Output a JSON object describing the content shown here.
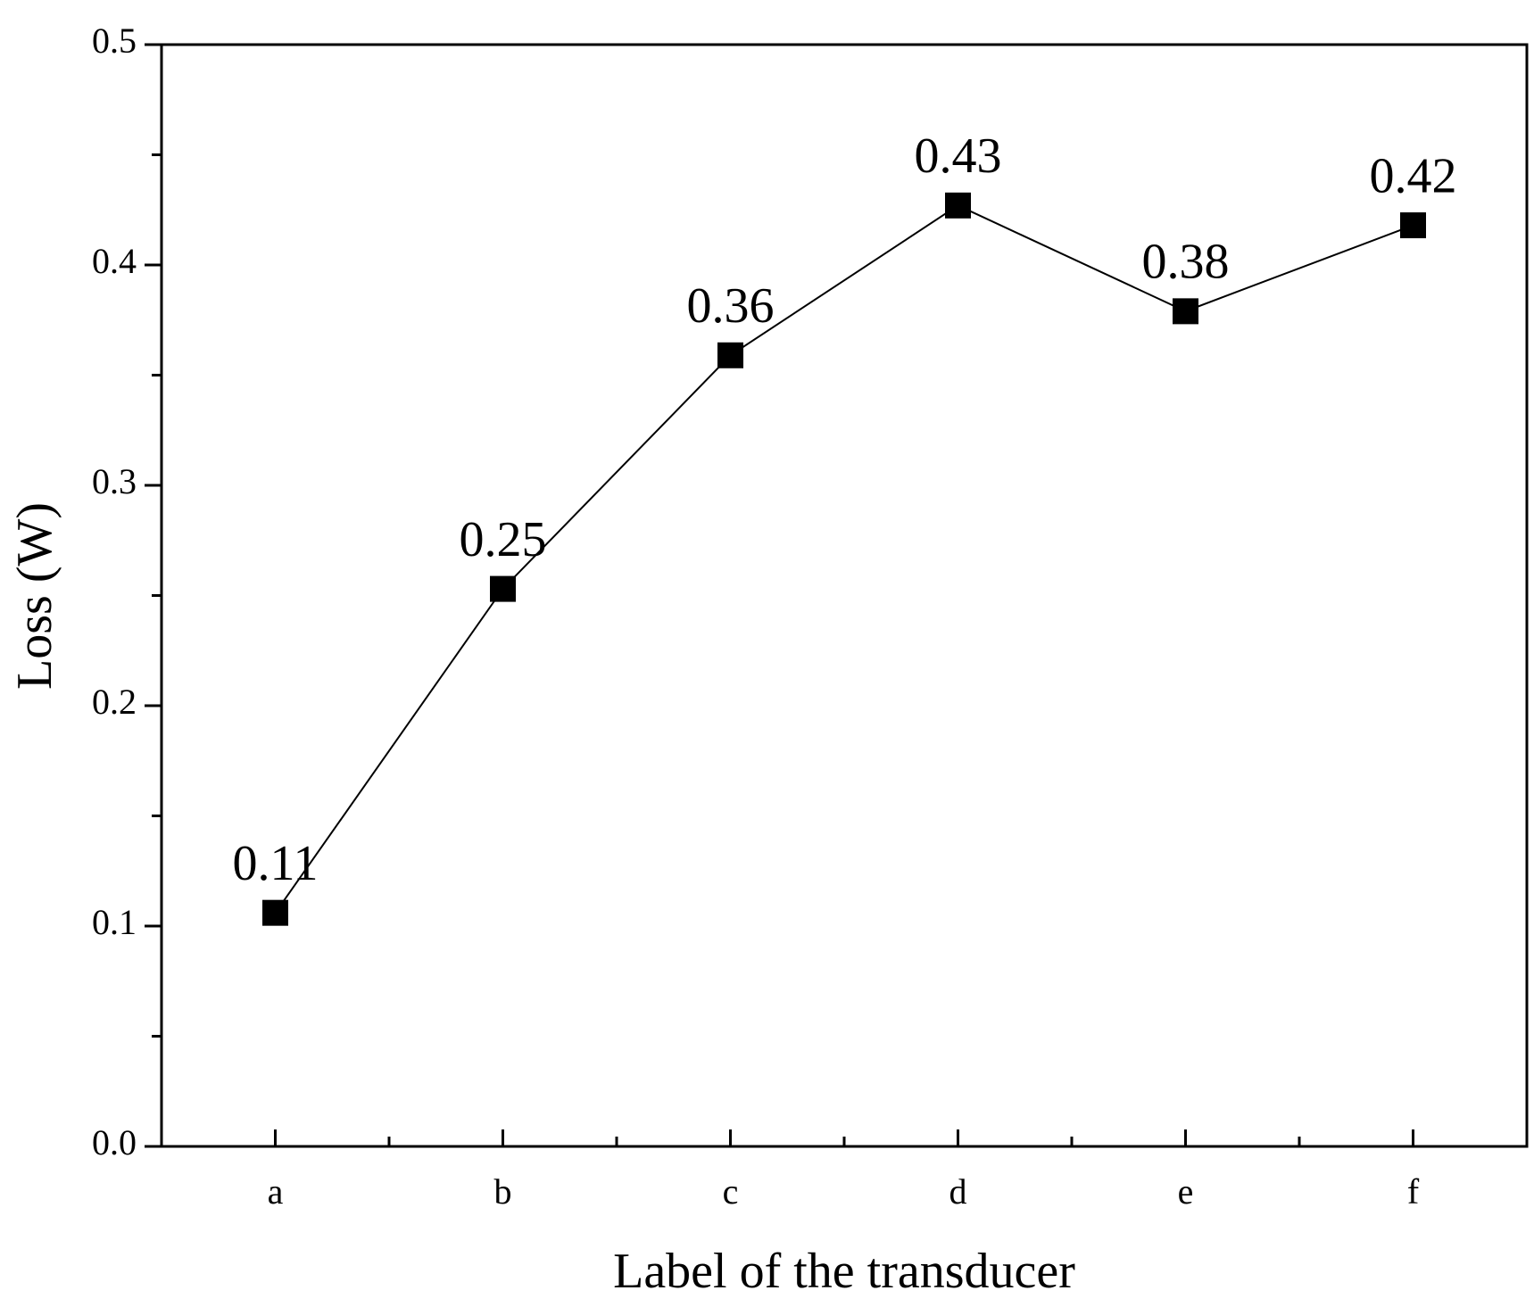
{
  "chart_data": {
    "type": "line",
    "x_label": "Label of the transducer",
    "y_label": "Loss (W)",
    "categories": [
      "a",
      "b",
      "c",
      "d",
      "e",
      "f"
    ],
    "values": [
      0.106,
      0.253,
      0.359,
      0.427,
      0.379,
      0.418
    ],
    "value_labels": [
      "0.11",
      "0.25",
      "0.36",
      "0.43",
      "0.38",
      "0.42"
    ],
    "color": "#000000",
    "marker": "square",
    "ylim": [
      0,
      0.5
    ],
    "yticks": [
      {
        "value": 0,
        "label": "0.0"
      },
      0.1,
      0.2,
      0.3,
      0.4,
      0.5
    ],
    "y_minor_ticks": [
      0.05,
      0.15,
      0.25,
      0.35,
      0.45
    ],
    "grid": false
  }
}
